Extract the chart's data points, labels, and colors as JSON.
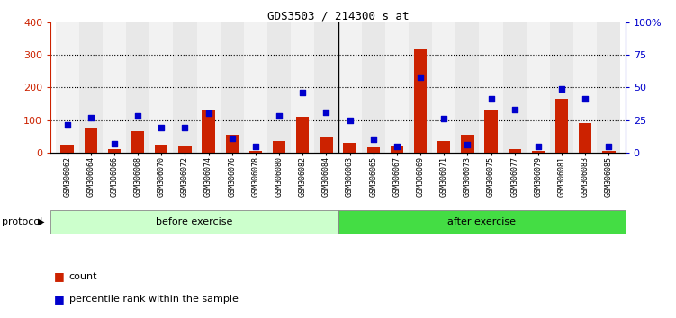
{
  "title": "GDS3503 / 214300_s_at",
  "categories": [
    "GSM306062",
    "GSM306064",
    "GSM306066",
    "GSM306068",
    "GSM306070",
    "GSM306072",
    "GSM306074",
    "GSM306076",
    "GSM306078",
    "GSM306080",
    "GSM306082",
    "GSM306084",
    "GSM306063",
    "GSM306065",
    "GSM306067",
    "GSM306069",
    "GSM306071",
    "GSM306073",
    "GSM306075",
    "GSM306077",
    "GSM306079",
    "GSM306081",
    "GSM306083",
    "GSM306085"
  ],
  "count_values": [
    25,
    75,
    10,
    65,
    25,
    18,
    130,
    55,
    5,
    35,
    110,
    50,
    30,
    15,
    20,
    320,
    35,
    55,
    130,
    10,
    5,
    165,
    90,
    5
  ],
  "percentile_values": [
    21,
    27,
    7,
    28,
    19,
    19,
    30,
    11,
    5,
    28,
    46,
    31,
    25,
    10,
    5,
    58,
    26,
    6,
    41,
    33,
    5,
    49,
    41,
    5
  ],
  "before_count": 12,
  "after_count": 12,
  "before_label": "before exercise",
  "after_label": "after exercise",
  "protocol_label": "protocol",
  "legend_count": "count",
  "legend_percentile": "percentile rank within the sample",
  "bar_color": "#cc2200",
  "dot_color": "#0000cc",
  "before_color": "#ccffcc",
  "after_color": "#44dd44",
  "left_ylim": [
    0,
    400
  ],
  "right_ylim": [
    0,
    100
  ],
  "left_yticks": [
    0,
    100,
    200,
    300,
    400
  ],
  "right_yticks": [
    0,
    25,
    50,
    75,
    100
  ],
  "right_yticklabels": [
    "0",
    "25",
    "50",
    "75",
    "100%"
  ],
  "bg_color": "#ffffff",
  "grid_dotted_values": [
    100,
    200,
    300
  ],
  "separator_idx": 12,
  "col_colors": [
    "#f2f2f2",
    "#e8e8e8"
  ]
}
